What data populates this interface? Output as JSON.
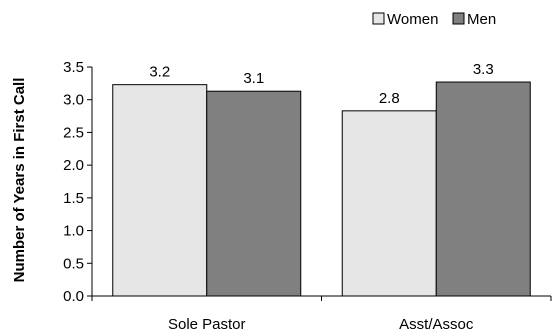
{
  "chart_data": {
    "type": "bar",
    "categories": [
      "Sole Pastor",
      "Asst/Assoc"
    ],
    "series": [
      {
        "name": "Women",
        "values": [
          3.2,
          2.8
        ],
        "labels": [
          "3.2",
          "2.8"
        ],
        "color": "#e6e6e6"
      },
      {
        "name": "Men",
        "values": [
          3.1,
          3.3
        ],
        "labels": [
          "3.1",
          "3.3"
        ],
        "color": "#808080"
      }
    ],
    "plot_values": [
      [
        3.23,
        2.83
      ],
      [
        3.13,
        3.27
      ]
    ],
    "ylabel": "Number of Years in First Call",
    "ylim": [
      0,
      3.5
    ],
    "yticks": [
      "0.0",
      "0.5",
      "1.0",
      "1.5",
      "2.0",
      "2.5",
      "3.0",
      "3.5"
    ],
    "legend_position": "top-right",
    "grid": false
  }
}
